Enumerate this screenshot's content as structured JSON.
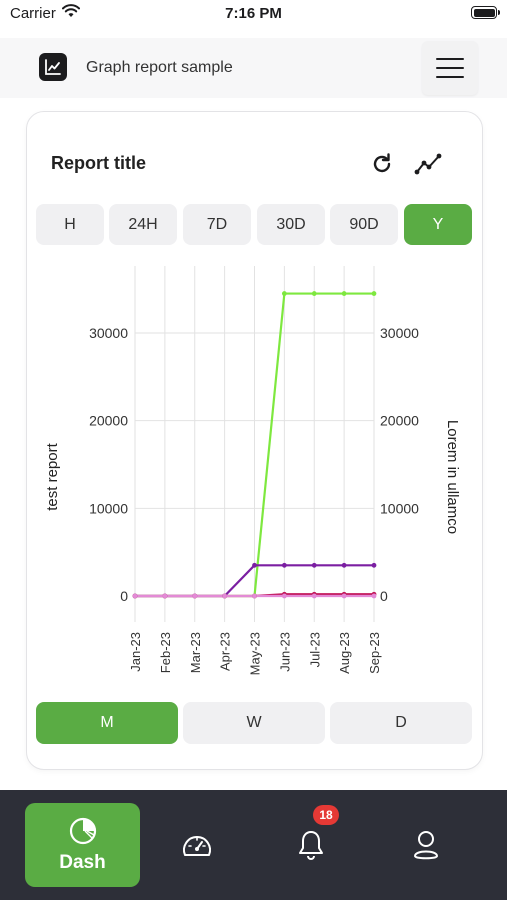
{
  "status_bar": {
    "carrier": "Carrier",
    "time": "7:16 PM"
  },
  "header": {
    "title": "Graph report sample",
    "logo_icon": "line-chart-icon",
    "menu_icon": "hamburger-menu-icon"
  },
  "report": {
    "title": "Report title",
    "refresh_icon": "refresh-icon",
    "chart_type_icon": "line-graph-icon",
    "ranges": [
      {
        "label": "H",
        "active": false
      },
      {
        "label": "24H",
        "active": false
      },
      {
        "label": "7D",
        "active": false
      },
      {
        "label": "30D",
        "active": false
      },
      {
        "label": "90D",
        "active": false
      },
      {
        "label": "Y",
        "active": true
      }
    ],
    "periods": [
      {
        "label": "M",
        "active": true
      },
      {
        "label": "W",
        "active": false
      },
      {
        "label": "D",
        "active": false
      }
    ]
  },
  "chart_data": {
    "type": "line",
    "categories": [
      "Jan-23",
      "Feb-23",
      "Mar-23",
      "Apr-23",
      "May-23",
      "Jun-23",
      "Jul-23",
      "Aug-23",
      "Sep-23"
    ],
    "ylabel": "test report",
    "y2label": "Lorem in ullamco",
    "ylim": [
      -1000,
      37000
    ],
    "y_ticks": [
      "0",
      "10000",
      "20000",
      "30000"
    ],
    "y_tick_values": [
      0,
      10000,
      20000,
      30000
    ],
    "grid": true,
    "series": [
      {
        "color": "#7ee83f",
        "values": [
          0,
          0,
          0,
          0,
          0,
          34500,
          34500,
          34500,
          34500
        ]
      },
      {
        "color": "#7b1fa2",
        "values": [
          0,
          0,
          0,
          0,
          3500,
          3500,
          3500,
          3500,
          3500
        ]
      },
      {
        "color": "#c2185b",
        "values": [
          0,
          0,
          0,
          0,
          0,
          200,
          200,
          200,
          200
        ]
      },
      {
        "color": "#e38ad6",
        "values": [
          0,
          0,
          0,
          0,
          0,
          0,
          0,
          0,
          0
        ]
      }
    ]
  },
  "tab_bar": {
    "dash_label": "Dash",
    "dash_icon": "pie-chart-icon",
    "speedometer_icon": "speedometer-icon",
    "bell_icon": "bell-icon",
    "notification_count": "18",
    "profile_icon": "user-profile-icon"
  }
}
